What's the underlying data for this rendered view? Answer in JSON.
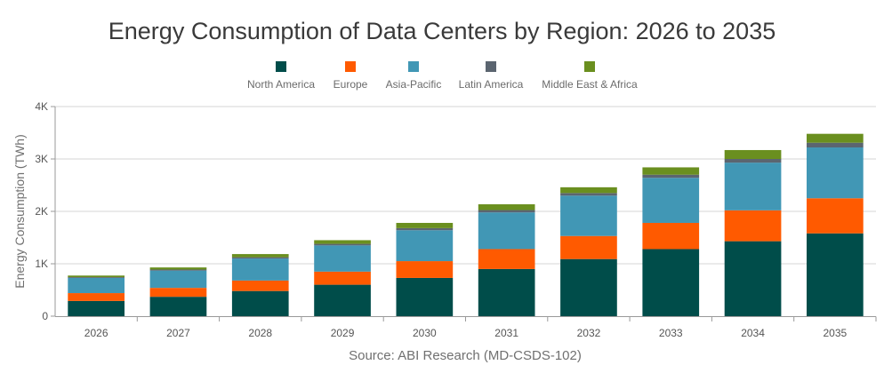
{
  "chart_data": {
    "type": "bar",
    "stacked": true,
    "title": "Energy Consumption of Data Centers by Region: 2026 to 2035",
    "ylabel": "Energy Consumption (TWh)",
    "xlabel": "",
    "source": "Source: ABI Research (MD-CSDS-102)",
    "ylim": [
      0,
      4000
    ],
    "yticks": [
      0,
      1000,
      2000,
      3000,
      4000
    ],
    "ytick_labels": [
      "0",
      "1K",
      "2K",
      "3K",
      "4K"
    ],
    "grid": true,
    "legend_position": "top",
    "categories": [
      "2026",
      "2027",
      "2028",
      "2029",
      "2030",
      "2031",
      "2032",
      "2033",
      "2034",
      "2035"
    ],
    "series": [
      {
        "name": "North America",
        "color": "#004d4a",
        "values": [
          290,
          370,
          480,
          600,
          730,
          900,
          1090,
          1280,
          1430,
          1580
        ]
      },
      {
        "name": "Europe",
        "color": "#ff5a00",
        "values": [
          150,
          170,
          200,
          250,
          320,
          380,
          440,
          500,
          590,
          670
        ]
      },
      {
        "name": "Asia-Pacific",
        "color": "#4197b5",
        "values": [
          290,
          330,
          420,
          500,
          590,
          700,
          770,
          860,
          910,
          970
        ]
      },
      {
        "name": "Latin America",
        "color": "#5b6570",
        "values": [
          15,
          20,
          25,
          30,
          40,
          45,
          50,
          60,
          70,
          90
        ]
      },
      {
        "name": "Middle East & Africa",
        "color": "#6a8f1f",
        "values": [
          30,
          40,
          60,
          70,
          100,
          110,
          110,
          140,
          170,
          170
        ]
      }
    ]
  }
}
